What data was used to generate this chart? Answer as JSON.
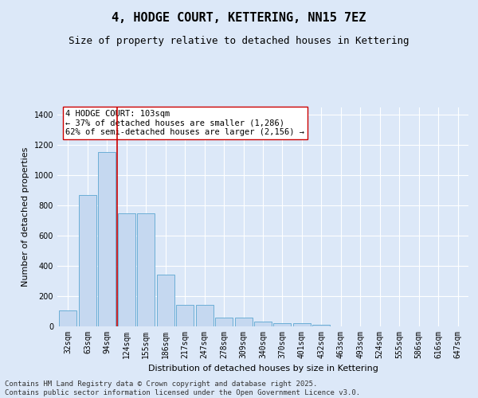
{
  "title": "4, HODGE COURT, KETTERING, NN15 7EZ",
  "subtitle": "Size of property relative to detached houses in Kettering",
  "xlabel": "Distribution of detached houses by size in Kettering",
  "ylabel": "Number of detached properties",
  "categories": [
    "32sqm",
    "63sqm",
    "94sqm",
    "124sqm",
    "155sqm",
    "186sqm",
    "217sqm",
    "247sqm",
    "278sqm",
    "309sqm",
    "340sqm",
    "370sqm",
    "401sqm",
    "432sqm",
    "463sqm",
    "493sqm",
    "524sqm",
    "555sqm",
    "586sqm",
    "616sqm",
    "647sqm"
  ],
  "values": [
    105,
    870,
    1155,
    750,
    750,
    345,
    140,
    140,
    60,
    60,
    30,
    20,
    20,
    8,
    0,
    0,
    0,
    0,
    0,
    0,
    0
  ],
  "bar_color": "#c5d8f0",
  "bar_edge_color": "#6baed6",
  "background_color": "#dce8f8",
  "grid_color": "#ffffff",
  "vline_x": 2.5,
  "vline_color": "#cc0000",
  "annotation_text": "4 HODGE COURT: 103sqm\n← 37% of detached houses are smaller (1,286)\n62% of semi-detached houses are larger (2,156) →",
  "annotation_box_facecolor": "#ffffff",
  "annotation_box_edgecolor": "#cc0000",
  "footer_line1": "Contains HM Land Registry data © Crown copyright and database right 2025.",
  "footer_line2": "Contains public sector information licensed under the Open Government Licence v3.0.",
  "ylim": [
    0,
    1450
  ],
  "yticks": [
    0,
    200,
    400,
    600,
    800,
    1000,
    1200,
    1400
  ],
  "title_fontsize": 11,
  "subtitle_fontsize": 9,
  "axis_label_fontsize": 8,
  "tick_fontsize": 7,
  "annotation_fontsize": 7.5,
  "footer_fontsize": 6.5
}
